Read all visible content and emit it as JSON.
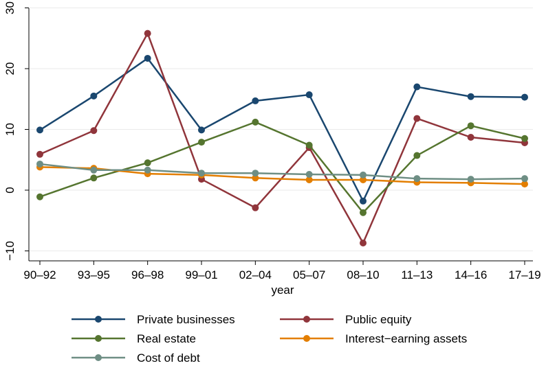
{
  "chart_data": {
    "type": "line",
    "title": "",
    "xlabel": "year",
    "ylabel": "",
    "categories": [
      "90–92",
      "93–95",
      "96–98",
      "99–01",
      "02–04",
      "05–07",
      "08–10",
      "11–13",
      "14–16",
      "17–19"
    ],
    "yticks": [
      "−10",
      "0",
      "10",
      "20",
      "30"
    ],
    "ylim": [
      -11,
      31
    ],
    "grid": true,
    "legend_position": "bottom",
    "series": [
      {
        "name": "Private businesses",
        "color": "#1a476f",
        "values": [
          9.9,
          15.5,
          21.7,
          9.9,
          14.7,
          15.7,
          -1.8,
          17.0,
          15.4,
          15.3
        ]
      },
      {
        "name": "Public equity",
        "color": "#90353b",
        "values": [
          5.9,
          9.8,
          25.8,
          1.8,
          -2.9,
          7.0,
          -8.7,
          11.8,
          8.7,
          7.8
        ]
      },
      {
        "name": "Real estate",
        "color": "#55752f",
        "values": [
          -1.1,
          2.0,
          4.5,
          7.9,
          11.2,
          7.4,
          -3.7,
          5.7,
          10.6,
          8.5
        ]
      },
      {
        "name": "Interest−earning assets",
        "color": "#e37e00",
        "values": [
          3.8,
          3.6,
          2.7,
          2.5,
          2.0,
          1.7,
          1.7,
          1.3,
          1.2,
          1.0
        ]
      },
      {
        "name": "Cost of debt",
        "color": "#6e8e84",
        "values": [
          4.3,
          3.3,
          3.3,
          2.8,
          2.8,
          2.6,
          2.5,
          1.9,
          1.8,
          1.9
        ]
      }
    ]
  }
}
